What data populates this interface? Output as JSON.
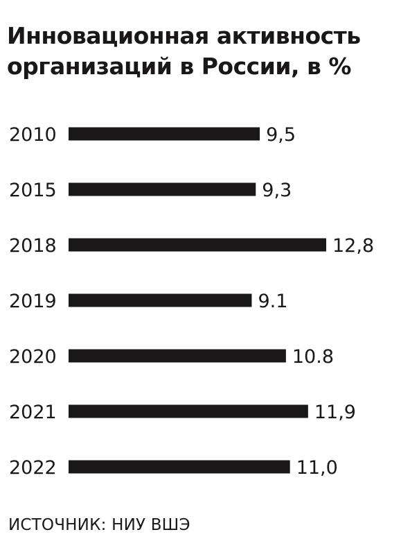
{
  "title_lines": [
    "Инновационная активность",
    "организаций в России, в %"
  ],
  "source": "ИСТОЧНИК: НИУ ВШЭ",
  "colors": {
    "bar": "#1a1718",
    "text": "#1a1718",
    "background": "#ffffff"
  },
  "chart_data": {
    "type": "bar",
    "orientation": "horizontal",
    "categories": [
      "2010",
      "2015",
      "2018",
      "2019",
      "2020",
      "2021",
      "2022"
    ],
    "values": [
      9.5,
      9.3,
      12.8,
      9.1,
      10.8,
      11.9,
      11.0
    ],
    "value_labels": [
      "9,5",
      "9,3",
      "12,8",
      "9.1",
      "10.8",
      "11,9",
      "11,0"
    ],
    "title": "Инновационная активность организаций в России, в %",
    "xlabel": "",
    "ylabel": "",
    "xlim": [
      0,
      12.8
    ],
    "grid": false,
    "legend": "none"
  }
}
